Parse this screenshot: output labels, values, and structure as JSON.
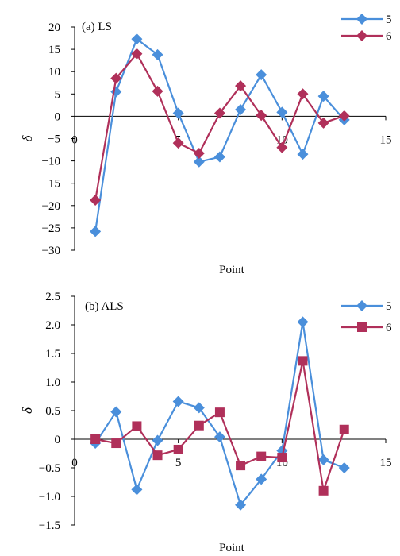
{
  "chart_data": [
    {
      "type": "line",
      "title": "(a) LS",
      "xlabel": "Point",
      "ylabel": "δ",
      "xlim": [
        0,
        15
      ],
      "ylim": [
        -30,
        20
      ],
      "x_ticks": [
        "0",
        "5",
        "10",
        "15"
      ],
      "y_ticks": [
        "20",
        "15",
        "10",
        "5",
        "0",
        "−5",
        "−10",
        "−15",
        "−20",
        "−25",
        "−30"
      ],
      "x": [
        1,
        2,
        3,
        4,
        5,
        6,
        7,
        8,
        9,
        10,
        11,
        12,
        13
      ],
      "legend_position": "top-right",
      "series": [
        {
          "name": "5",
          "color": "#4a8fdb",
          "marker": "diamond",
          "values": [
            -25.8,
            5.5,
            17.3,
            13.8,
            0.7,
            -10.2,
            -9.1,
            1.5,
            9.3,
            0.9,
            -8.5,
            4.5,
            -0.8
          ]
        },
        {
          "name": "6",
          "color": "#b0305a",
          "marker": "diamond",
          "values": [
            -18.8,
            8.5,
            14.0,
            5.6,
            -6.0,
            -8.3,
            0.7,
            6.8,
            0.2,
            -7.0,
            5.0,
            -1.5,
            0.1
          ]
        }
      ]
    },
    {
      "type": "line",
      "title": "(b) ALS",
      "xlabel": "Point",
      "ylabel": "δ",
      "xlim": [
        0,
        15
      ],
      "ylim": [
        -1.5,
        2.5
      ],
      "x_ticks": [
        "0",
        "5",
        "10",
        "15"
      ],
      "y_ticks": [
        "2.5",
        "2.0",
        "1.5",
        "1.0",
        "0.5",
        "0",
        "−0.5",
        "−1.0",
        "−1.5"
      ],
      "x": [
        1,
        2,
        3,
        4,
        5,
        6,
        7,
        8,
        9,
        10,
        11,
        12,
        13
      ],
      "legend_position": "top-right",
      "series": [
        {
          "name": "5",
          "color": "#4a8fdb",
          "marker": "diamond",
          "values": [
            -0.07,
            0.48,
            -0.88,
            -0.02,
            0.66,
            0.55,
            0.04,
            -1.15,
            -0.7,
            -0.2,
            2.05,
            -0.36,
            -0.5
          ]
        },
        {
          "name": "6",
          "color": "#b0305a",
          "marker": "square",
          "values": [
            0.0,
            -0.07,
            0.23,
            -0.28,
            -0.18,
            0.24,
            0.47,
            -0.46,
            -0.3,
            -0.32,
            1.37,
            -0.9,
            0.17
          ]
        }
      ]
    }
  ]
}
